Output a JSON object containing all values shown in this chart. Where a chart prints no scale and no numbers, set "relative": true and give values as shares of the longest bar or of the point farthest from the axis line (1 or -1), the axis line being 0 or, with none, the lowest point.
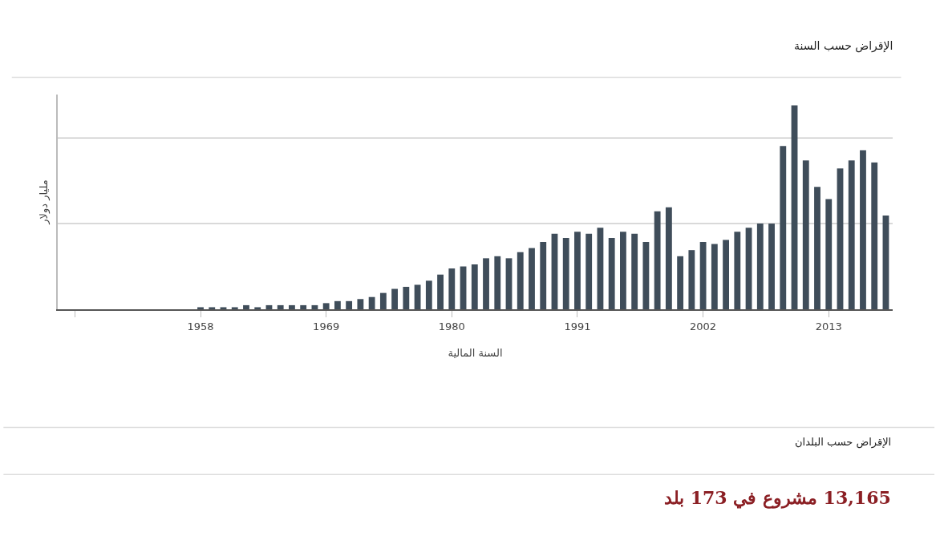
{
  "chart_data": {
    "type": "bar",
    "title": "الإقراض حسب السنة",
    "xlabel": "السنة المالية",
    "ylabel": "مليار دولار",
    "relative": true,
    "ref_lines": [
      {
        "axis": "y",
        "value": 0.42,
        "color": "#cccccc"
      },
      {
        "axis": "y",
        "value": 0.84,
        "color": "#cccccc"
      }
    ],
    "color": "#3f4d5a",
    "x": [
      1958,
      1959,
      1960,
      1961,
      1962,
      1963,
      1964,
      1965,
      1966,
      1967,
      1968,
      1969,
      1970,
      1971,
      1972,
      1973,
      1974,
      1975,
      1976,
      1977,
      1978,
      1979,
      1980,
      1981,
      1982,
      1983,
      1984,
      1985,
      1986,
      1987,
      1988,
      1989,
      1990,
      1991,
      1992,
      1993,
      1994,
      1995,
      1996,
      1997,
      1998,
      1999,
      2000,
      2001,
      2002,
      2003,
      2004,
      2005,
      2006,
      2007,
      2008,
      2009,
      2010,
      2011,
      2012,
      2013,
      2014,
      2015,
      2016,
      2017,
      2018
    ],
    "values": [
      0.01,
      0.01,
      0.01,
      0.01,
      0.02,
      0.01,
      0.02,
      0.02,
      0.02,
      0.02,
      0.02,
      0.03,
      0.04,
      0.04,
      0.05,
      0.06,
      0.08,
      0.1,
      0.11,
      0.12,
      0.14,
      0.17,
      0.2,
      0.21,
      0.22,
      0.25,
      0.26,
      0.25,
      0.28,
      0.3,
      0.33,
      0.37,
      0.35,
      0.38,
      0.37,
      0.4,
      0.35,
      0.38,
      0.37,
      0.33,
      0.48,
      0.5,
      0.26,
      0.29,
      0.33,
      0.32,
      0.34,
      0.38,
      0.4,
      0.42,
      0.42,
      0.8,
      1,
      0.73,
      0.6,
      0.54,
      0.69,
      0.73,
      0.78,
      0.72,
      0.46
    ],
    "xlim": [
      1945.5,
      2018.6
    ],
    "xticks": [
      {
        "value": 1947,
        "label": null
      },
      1958,
      1969,
      1980,
      1991,
      2002,
      2013
    ],
    "annotations": [
      "الإقراض حسب البلدان",
      "13,165 مشروع في 173 بلد"
    ]
  }
}
